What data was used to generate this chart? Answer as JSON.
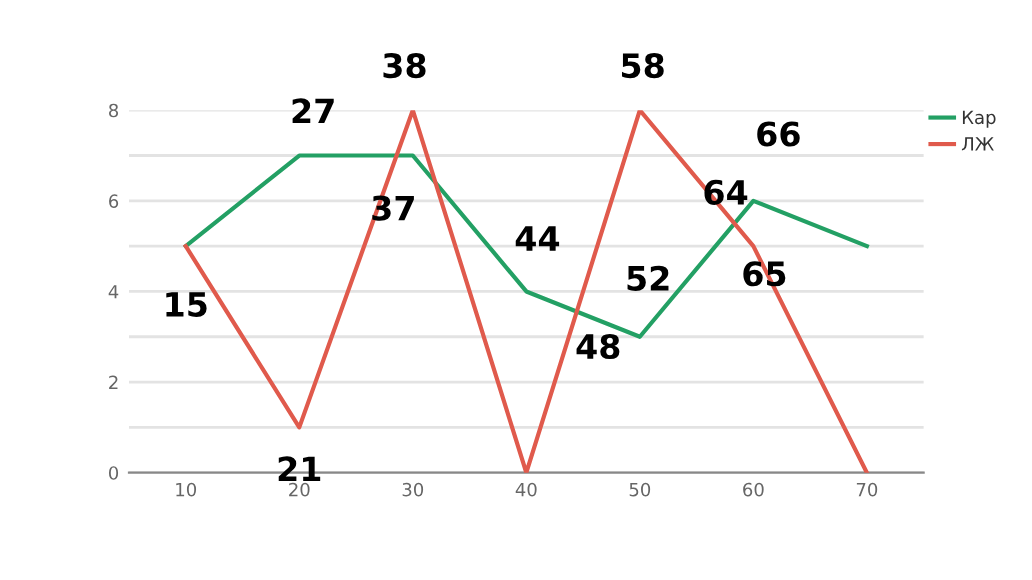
{
  "chart_data": {
    "type": "line",
    "x": [
      10,
      20,
      30,
      40,
      50,
      60,
      70
    ],
    "series": [
      {
        "name": "Кар",
        "color": "#23a064",
        "values": [
          5,
          7,
          7,
          4,
          3,
          6,
          5
        ]
      },
      {
        "name": "ЛЖ",
        "color": "#e05a4c",
        "values": [
          5,
          1,
          8,
          0,
          8,
          5,
          0
        ]
      }
    ],
    "xlim": [
      5,
      75
    ],
    "xticks": [
      10,
      20,
      30,
      40,
      50,
      60,
      70
    ],
    "ylim": [
      0,
      8
    ],
    "yticks": [
      0,
      {
        "value": 1,
        "label": null
      },
      2,
      {
        "value": 3,
        "label": null
      },
      4,
      {
        "value": 5,
        "label": null
      },
      6,
      {
        "value": 7,
        "label": null
      },
      8
    ],
    "grid": "y",
    "legend": "right",
    "marker": "none",
    "line_style": "solid",
    "annotations": [
      {
        "text": "15",
        "x": 10,
        "y": 5
      },
      {
        "text": "27",
        "x": 20,
        "y": 7
      },
      {
        "text": "38",
        "x": 30,
        "y": 8
      },
      {
        "text": "37",
        "x": 30,
        "y": 7
      },
      {
        "text": "21",
        "x": 20,
        "y": 1
      },
      {
        "text": "44",
        "x": 40,
        "y": 4
      },
      {
        "text": "48",
        "x": 43.4,
        "y": 2.72
      },
      {
        "text": "52",
        "x": 50,
        "y": 3
      },
      {
        "text": "58",
        "x": 50,
        "y": 8
      },
      {
        "text": "66",
        "x": 60,
        "y": 6
      },
      {
        "text": "64",
        "x": 60,
        "y": 6
      },
      {
        "text": "65",
        "x": 60,
        "y": 5
      }
    ]
  }
}
